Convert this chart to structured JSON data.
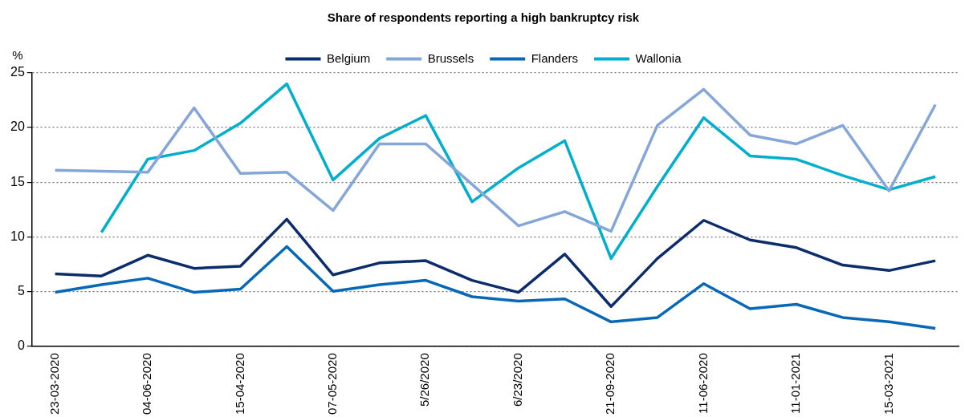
{
  "chart_data": {
    "type": "line",
    "title": "Share of respondents reporting a high bankruptcy risk",
    "ylabel": "%",
    "categories": [
      "23-03-2020",
      null,
      "04-06-2020",
      null,
      "15-04-2020",
      null,
      "07-05-2020",
      null,
      "5/26/2020",
      null,
      "6/23/2020",
      null,
      "21-09-2020",
      null,
      "11-06-2020",
      null,
      "11-01-2021",
      null,
      "15-03-2021",
      null
    ],
    "series": [
      {
        "name": "Belgium",
        "color": "#0b2d6b",
        "values": [
          6.6,
          6.4,
          8.3,
          7.1,
          7.3,
          11.6,
          6.5,
          7.6,
          7.8,
          6.0,
          4.9,
          8.4,
          3.6,
          8.0,
          11.5,
          9.7,
          9.0,
          7.4,
          6.9,
          7.8
        ]
      },
      {
        "name": "Brussels",
        "color": "#85a6d9",
        "values": [
          16.1,
          16.0,
          15.9,
          21.8,
          15.8,
          15.9,
          12.4,
          18.5,
          18.5,
          14.8,
          11.0,
          12.3,
          10.5,
          20.2,
          23.5,
          19.3,
          18.5,
          20.2,
          14.2,
          22.1
        ]
      },
      {
        "name": "Flanders",
        "color": "#0868b8",
        "values": [
          4.9,
          5.6,
          6.2,
          4.9,
          5.2,
          9.1,
          5.0,
          5.6,
          6.0,
          4.5,
          4.1,
          4.3,
          2.2,
          2.6,
          5.7,
          3.4,
          3.8,
          2.6,
          2.2,
          1.6
        ]
      },
      {
        "name": "Wallonia",
        "color": "#00aecd",
        "values": [
          null,
          10.4,
          17.1,
          17.9,
          20.4,
          24.0,
          15.2,
          19.0,
          21.1,
          13.2,
          16.3,
          18.8,
          8.0,
          14.6,
          20.9,
          17.4,
          17.1,
          15.6,
          14.3,
          15.5
        ]
      }
    ],
    "ylim": [
      0,
      25
    ],
    "yticks": [
      0,
      5,
      10,
      15,
      20,
      25
    ],
    "grid": "y",
    "legend": "top",
    "marker": "none",
    "line_style": "solid"
  }
}
